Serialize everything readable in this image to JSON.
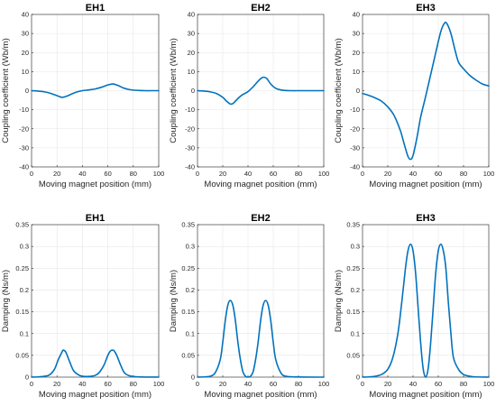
{
  "figure": {
    "background": "#ffffff",
    "line_color": "#0072BD",
    "grid_color": "#e6e6e6",
    "axis_color": "#262626"
  },
  "chart_data": [
    {
      "type": "line",
      "title": "EH1",
      "xlabel": "Moving magnet position (mm)",
      "ylabel": "Coupling coefficient (Wb/m)",
      "xlim": [
        0,
        100
      ],
      "ylim": [
        -40,
        40
      ],
      "xticks": [
        0,
        20,
        40,
        60,
        80,
        100
      ],
      "yticks": [
        -40,
        -30,
        -20,
        -10,
        0,
        10,
        20,
        30,
        40
      ],
      "grid": true,
      "series": [
        {
          "x": [
            0,
            5,
            10,
            15,
            20,
            24,
            28,
            32,
            36,
            40,
            45,
            50,
            55,
            60,
            64,
            68,
            72,
            76,
            80,
            85,
            90,
            95,
            100
          ],
          "y": [
            0,
            -0.2,
            -0.6,
            -1.4,
            -2.6,
            -3.5,
            -2.8,
            -1.6,
            -0.6,
            0,
            0.4,
            0.9,
            1.8,
            3.0,
            3.5,
            2.7,
            1.5,
            0.7,
            0.3,
            0.1,
            0,
            0,
            0
          ]
        }
      ]
    },
    {
      "type": "line",
      "title": "EH2",
      "xlabel": "Moving magnet position (mm)",
      "ylabel": "Coupling coefficient (Wb/m)",
      "xlim": [
        0,
        100
      ],
      "ylim": [
        -40,
        40
      ],
      "xticks": [
        0,
        20,
        40,
        60,
        80,
        100
      ],
      "yticks": [
        -40,
        -30,
        -20,
        -10,
        0,
        10,
        20,
        30,
        40
      ],
      "grid": true,
      "series": [
        {
          "x": [
            0,
            5,
            10,
            15,
            20,
            23,
            26,
            28,
            30,
            33,
            36,
            40,
            44,
            48,
            51,
            53,
            55,
            58,
            62,
            66,
            70,
            75,
            80,
            90,
            100
          ],
          "y": [
            0,
            -0.2,
            -0.6,
            -1.5,
            -3.5,
            -5.5,
            -7,
            -6.8,
            -5.5,
            -3.5,
            -2,
            -0.5,
            2,
            5,
            6.8,
            7,
            6.3,
            3.5,
            1.2,
            0.4,
            0.1,
            0,
            0,
            0,
            0
          ]
        }
      ]
    },
    {
      "type": "line",
      "title": "EH3",
      "xlabel": "Moving magnet position (mm)",
      "ylabel": "Coupling coefficient (Wb/m)",
      "xlim": [
        0,
        100
      ],
      "ylim": [
        -40,
        40
      ],
      "xticks": [
        0,
        20,
        40,
        60,
        80,
        100
      ],
      "yticks": [
        -40,
        -30,
        -20,
        -10,
        0,
        10,
        20,
        30,
        40
      ],
      "grid": true,
      "series": [
        {
          "x": [
            0,
            5,
            10,
            15,
            20,
            25,
            30,
            33,
            36,
            38,
            40,
            43,
            46,
            50,
            54,
            58,
            62,
            65,
            67,
            70,
            73,
            76,
            80,
            85,
            90,
            95,
            100
          ],
          "y": [
            -1.5,
            -2.5,
            -3.8,
            -5.5,
            -8.5,
            -13,
            -21,
            -28,
            -34.5,
            -36,
            -34,
            -25,
            -14,
            -3,
            8.5,
            20,
            31,
            35.5,
            35,
            30,
            22,
            15,
            11.5,
            8,
            5.5,
            3.5,
            2.5
          ]
        }
      ]
    },
    {
      "type": "line",
      "title": "EH1",
      "xlabel": "Moving magnet position (mm)",
      "ylabel": "Damping (Ns/m)",
      "xlim": [
        0,
        100
      ],
      "ylim": [
        0,
        0.35
      ],
      "xticks": [
        0,
        20,
        40,
        60,
        80,
        100
      ],
      "yticks": [
        0,
        0.05,
        0.1,
        0.15,
        0.2,
        0.25,
        0.3,
        0.35
      ],
      "grid": true,
      "series": [
        {
          "x": [
            0,
            5,
            10,
            14,
            18,
            21,
            24,
            25,
            27,
            30,
            33,
            37,
            40,
            44,
            47,
            50,
            53,
            57,
            60,
            62,
            64,
            65,
            67,
            70,
            73,
            77,
            82,
            90,
            100
          ],
          "y": [
            0,
            0.0005,
            0.002,
            0.005,
            0.018,
            0.04,
            0.058,
            0.062,
            0.057,
            0.035,
            0.015,
            0.005,
            0.002,
            0.0015,
            0.002,
            0.004,
            0.01,
            0.028,
            0.05,
            0.06,
            0.062,
            0.06,
            0.05,
            0.028,
            0.01,
            0.003,
            0.001,
            0.0002,
            0
          ]
        }
      ]
    },
    {
      "type": "line",
      "title": "EH2",
      "xlabel": "Moving magnet position (mm)",
      "ylabel": "Damping (Ns/m)",
      "xlim": [
        0,
        100
      ],
      "ylim": [
        0,
        0.35
      ],
      "xticks": [
        0,
        20,
        40,
        60,
        80,
        100
      ],
      "yticks": [
        0,
        0.05,
        0.1,
        0.15,
        0.2,
        0.25,
        0.3,
        0.35
      ],
      "grid": true,
      "series": [
        {
          "x": [
            0,
            5,
            10,
            14,
            18,
            20,
            22,
            24,
            26,
            28,
            30,
            32,
            34,
            36,
            38,
            40,
            42,
            44,
            46,
            48,
            50,
            52,
            54,
            56,
            58,
            60,
            62,
            66,
            70,
            80,
            100
          ],
          "y": [
            0,
            0.0005,
            0.002,
            0.01,
            0.04,
            0.08,
            0.13,
            0.165,
            0.176,
            0.165,
            0.13,
            0.08,
            0.04,
            0.012,
            0.002,
            0,
            0.002,
            0.012,
            0.04,
            0.08,
            0.13,
            0.165,
            0.176,
            0.165,
            0.13,
            0.08,
            0.04,
            0.01,
            0.002,
            0.0003,
            0
          ]
        }
      ]
    },
    {
      "type": "line",
      "title": "EH3",
      "xlabel": "Moving magnet position (mm)",
      "ylabel": "Damping (Ns/m)",
      "xlim": [
        0,
        100
      ],
      "ylim": [
        0,
        0.35
      ],
      "xticks": [
        0,
        20,
        40,
        60,
        80,
        100
      ],
      "yticks": [
        0,
        0.05,
        0.1,
        0.15,
        0.2,
        0.25,
        0.3,
        0.35
      ],
      "grid": true,
      "series": [
        {
          "x": [
            0,
            5,
            10,
            15,
            20,
            24,
            28,
            31,
            34,
            36,
            38,
            40,
            42,
            44,
            46,
            48,
            50,
            52,
            54,
            56,
            58,
            60,
            62,
            64,
            66,
            68,
            70,
            72,
            76,
            80,
            85,
            90,
            100
          ],
          "y": [
            0,
            0.0005,
            0.002,
            0.006,
            0.018,
            0.045,
            0.1,
            0.17,
            0.25,
            0.29,
            0.305,
            0.29,
            0.24,
            0.16,
            0.08,
            0.02,
            0,
            0.02,
            0.08,
            0.16,
            0.24,
            0.29,
            0.305,
            0.29,
            0.25,
            0.17,
            0.1,
            0.045,
            0.018,
            0.006,
            0.002,
            0.0005,
            0
          ]
        }
      ]
    }
  ]
}
